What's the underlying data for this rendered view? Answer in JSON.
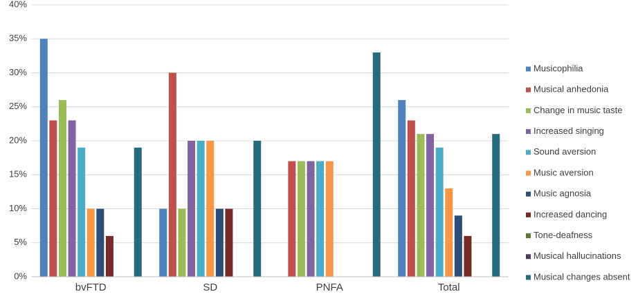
{
  "chart_data": {
    "type": "bar",
    "categories": [
      "bvFTD",
      "SD",
      "PNFA",
      "Total"
    ],
    "series": [
      {
        "name": "Musicophilia",
        "color": "#4f81bd",
        "values": [
          35,
          10,
          0,
          26
        ]
      },
      {
        "name": "Musical anhedonia",
        "color": "#c0504d",
        "values": [
          23,
          30,
          17,
          23
        ]
      },
      {
        "name": "Change in music taste",
        "color": "#9bbb59",
        "values": [
          26,
          10,
          17,
          21
        ]
      },
      {
        "name": "Increased singing",
        "color": "#8064a2",
        "values": [
          23,
          20,
          17,
          21
        ]
      },
      {
        "name": "Sound aversion",
        "color": "#4bacc6",
        "values": [
          19,
          20,
          17,
          19
        ]
      },
      {
        "name": "Music aversion",
        "color": "#f79646",
        "values": [
          10,
          20,
          17,
          13
        ]
      },
      {
        "name": "Music agnosia",
        "color": "#2c4d75",
        "values": [
          10,
          10,
          0,
          9
        ]
      },
      {
        "name": "Increased dancing",
        "color": "#772c2a",
        "values": [
          6,
          10,
          0,
          6
        ]
      },
      {
        "name": "Tone-deafness",
        "color": "#5f7530",
        "values": [
          0,
          0,
          0,
          0
        ]
      },
      {
        "name": "Musical hallucinations",
        "color": "#4d3b62",
        "values": [
          0,
          0,
          0,
          0
        ]
      },
      {
        "name": "Musical changes absent",
        "color": "#276a7c",
        "values": [
          19,
          20,
          33,
          21
        ]
      }
    ],
    "ylim": [
      0,
      40
    ],
    "yticks": [
      {
        "value": 0,
        "label": "0%"
      },
      {
        "value": 5,
        "label": "5%"
      },
      {
        "value": 10,
        "label": "10%"
      },
      {
        "value": 15,
        "label": "15%"
      },
      {
        "value": 20,
        "label": "20%"
      },
      {
        "value": 25,
        "label": "25%"
      },
      {
        "value": 30,
        "label": "30%"
      },
      {
        "value": 35,
        "label": "35%"
      },
      {
        "value": 40,
        "label": "40%"
      }
    ],
    "grid": true,
    "legend": "right"
  }
}
